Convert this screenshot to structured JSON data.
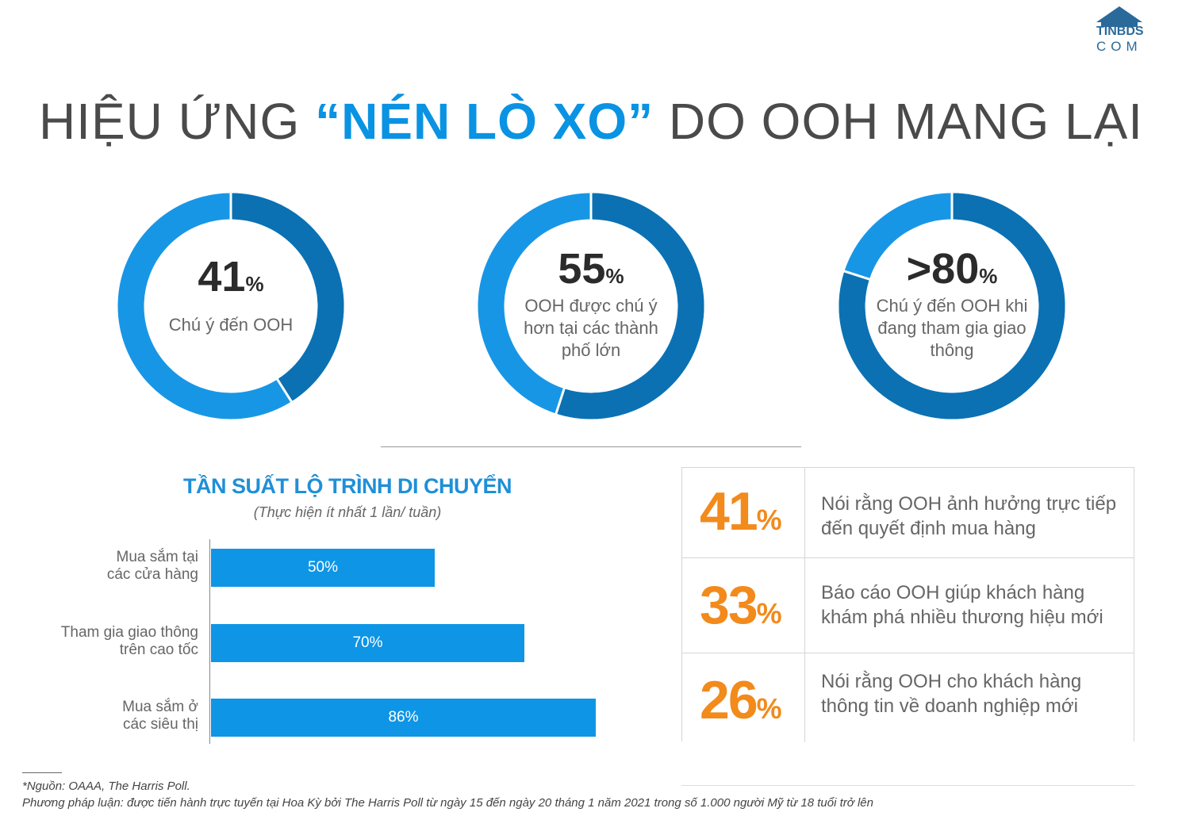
{
  "logo": {
    "line1": "TINBDS",
    "line2": "COM"
  },
  "title": {
    "part1": "HIỆU ỨNG ",
    "highlight": "“NÉN LÒ XO”",
    "part2": " DO OOH MANG LẠI"
  },
  "donuts": [
    {
      "value": "41",
      "pct": "%",
      "fraction": 0.41,
      "desc": "Chú ý đến OOH"
    },
    {
      "value": "55",
      "pct": "%",
      "fraction": 0.55,
      "desc": "OOH được chú ý hơn tại các thành phố lớn"
    },
    {
      "value": ">80",
      "pct": "%",
      "fraction": 0.8,
      "desc": "Chú ý đến OOH khi đang tham gia giao thông"
    }
  ],
  "colors": {
    "dark_blue": "#0b71b3",
    "light_blue": "#1896e6",
    "orange": "#f28a1c",
    "title_blue": "#0a93e3"
  },
  "chart_data": {
    "type": "bar",
    "orientation": "horizontal",
    "title": "TẦN SUẤT LỘ TRÌNH DI CHUYỂN",
    "subtitle": "(Thực hiện ít nhất 1 lần/ tuần)",
    "categories": [
      "Mua sắm tại các cửa hàng",
      "Tham gia giao thông trên cao tốc",
      "Mua sắm ở các siêu thị"
    ],
    "category_lines": [
      [
        "Mua sắm tại",
        "các cửa hàng"
      ],
      [
        "Tham gia giao thông",
        "trên cao tốc"
      ],
      [
        "Mua sắm ở",
        "các siêu thị"
      ]
    ],
    "values": [
      50,
      70,
      86
    ],
    "labels": [
      "50%",
      "70%",
      "86%"
    ],
    "xlim": [
      0,
      100
    ]
  },
  "stats": [
    {
      "number": "41",
      "pct": "%",
      "line1": "Nói rằng OOH ảnh hưởng trực tiếp",
      "line2": "đến quyết định mua hàng"
    },
    {
      "number": "33",
      "pct": "%",
      "line1": "Báo cáo OOH giúp khách hàng",
      "line2": "khám phá nhiều thương hiệu mới"
    },
    {
      "number": "26",
      "pct": "%",
      "line1": "Nói rằng OOH cho khách hàng",
      "line2": "thông tin về doanh nghiệp mới"
    }
  ],
  "footer": {
    "source": "*Nguồn: OAAA, The Harris Poll.",
    "method": "Phương pháp luận: được tiến hành trực tuyến tại Hoa Kỳ bởi The Harris Poll từ ngày 15 đến ngày 20 tháng 1 năm 2021 trong số 1.000 người Mỹ từ 18 tuổi trở lên"
  }
}
